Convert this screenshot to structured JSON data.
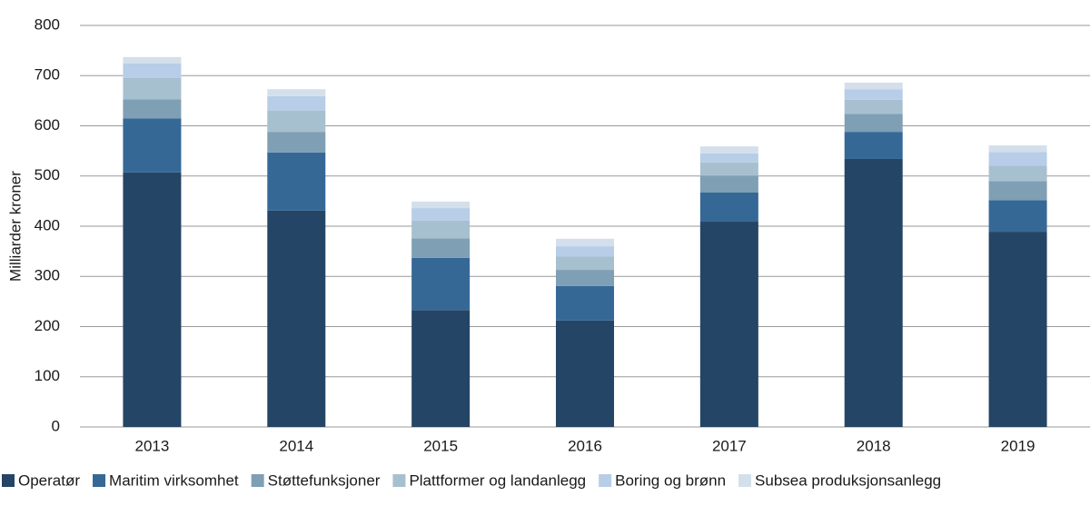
{
  "chart_data": {
    "type": "stacked_bar",
    "y_label": "Milliarder kroner",
    "categories": [
      "2013",
      "2014",
      "2015",
      "2016",
      "2017",
      "2018",
      "2019"
    ],
    "series": [
      {
        "name": "Operatør",
        "color": "#244565",
        "values": [
          507,
          431,
          233,
          212,
          409,
          534,
          389
        ]
      },
      {
        "name": "Maritim virksomhet",
        "color": "#366896",
        "values": [
          108,
          116,
          104,
          69,
          58,
          54,
          63
        ]
      },
      {
        "name": "Støttefunksjoner",
        "color": "#7f9fb5",
        "values": [
          38,
          41,
          39,
          32,
          34,
          36,
          38
        ]
      },
      {
        "name": "Plattformer og landanlegg",
        "color": "#a7c0cf",
        "values": [
          42,
          42,
          35,
          27,
          26,
          28,
          31
        ]
      },
      {
        "name": "Boring og brønn",
        "color": "#b7cde8",
        "values": [
          29,
          29,
          25,
          20,
          18,
          21,
          27
        ]
      },
      {
        "name": "Subsea produksjonsanlegg",
        "color": "#d3e0eb",
        "values": [
          13,
          14,
          13,
          15,
          14,
          13,
          13
        ]
      }
    ],
    "ylim": [
      0,
      800
    ],
    "yticks": [
      0,
      100,
      200,
      300,
      400,
      500,
      600,
      700,
      800
    ],
    "grid": true
  }
}
